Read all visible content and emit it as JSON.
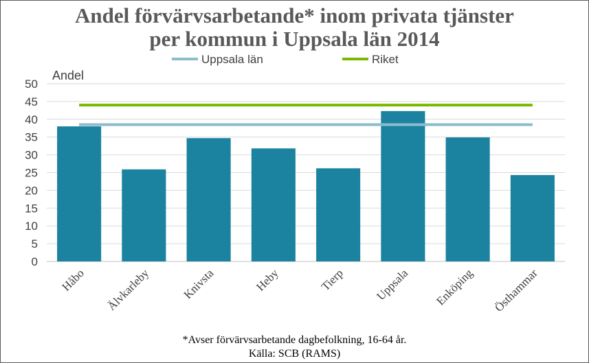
{
  "chart_data": {
    "type": "bar",
    "title_lines": [
      "Andel förvärvsarbetande* inom privata tjänster",
      "per kommun i Uppsala län 2014"
    ],
    "ylabel": "Andel",
    "xlabel": "",
    "categories": [
      "Håbo",
      "Älvkarleby",
      "Knivsta",
      "Heby",
      "Tierp",
      "Uppsala",
      "Enköping",
      "Östhammar"
    ],
    "values": [
      38.0,
      25.9,
      34.7,
      31.8,
      26.2,
      42.3,
      34.9,
      24.3
    ],
    "yticks": [
      "0",
      "5",
      "10",
      "15",
      "20",
      "25",
      "30",
      "35",
      "40",
      "45",
      "50"
    ],
    "ylim": [
      0,
      50
    ],
    "reference_lines": [
      {
        "name": "Uppsala län",
        "value": 38.5,
        "color": "#8BBCCC"
      },
      {
        "name": "Riket",
        "value": 44.0,
        "color": "#7AB800"
      }
    ],
    "bar_color": "#1B82A0",
    "grid": true,
    "legend_position": "top-center",
    "footnotes": [
      "*Avser förvärvsarbetande dagbefolkning, 16-64 år.",
      "Källa: SCB (RAMS)"
    ]
  }
}
